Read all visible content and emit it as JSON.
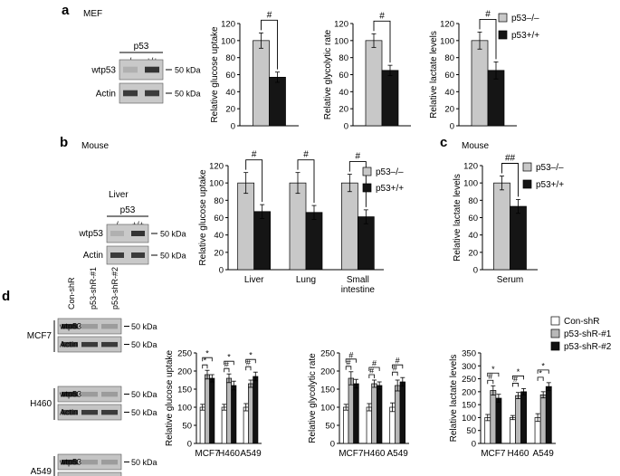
{
  "panels": {
    "a": {
      "letter": "a",
      "subtitle": "MEF"
    },
    "b": {
      "letter": "b",
      "subtitle": "Mouse"
    },
    "c": {
      "letter": "c",
      "subtitle": "Mouse"
    },
    "d": {
      "letter": "d"
    }
  },
  "blots": {
    "a": {
      "group_label": "p53",
      "lanes": [
        "–/–",
        "+/+"
      ],
      "rows": [
        {
          "label": "wtp53",
          "marker": "50 kDa"
        },
        {
          "label": "Actin",
          "marker": "50 kDa"
        }
      ]
    },
    "b": {
      "tissue": "Liver",
      "group_label": "p53",
      "lanes": [
        "–/–",
        "+/+"
      ],
      "rows": [
        {
          "label": "wtp53",
          "marker": "50 kDa"
        },
        {
          "label": "Actin",
          "marker": "50 kDa"
        }
      ]
    },
    "d": {
      "lanes": [
        "Con-shR",
        "p53-shR-#1",
        "p53-shR-#2"
      ],
      "cells": [
        "MCF7",
        "H460",
        "A549"
      ],
      "rows": [
        {
          "label": "wtp53",
          "marker": "50 kDa"
        },
        {
          "label": "Actin",
          "marker": "50 kDa"
        }
      ]
    }
  },
  "legends": {
    "ac": {
      "items": [
        {
          "label": "p53–/–",
          "color": "#c8c8c8"
        },
        {
          "label": "p53+/+",
          "color": "#151515"
        }
      ]
    },
    "d": {
      "items": [
        {
          "label": "Con-shR",
          "color": "#ffffff"
        },
        {
          "label": "p53-shR-#1",
          "color": "#b8b8b8"
        },
        {
          "label": "p53-shR-#2",
          "color": "#111111"
        }
      ]
    }
  },
  "chart_data": [
    {
      "id": "a1",
      "type": "bar",
      "ylabel": "Relative glucose uptake",
      "ylim": [
        0,
        120
      ],
      "yticks": [
        0,
        20,
        40,
        60,
        80,
        100,
        120
      ],
      "categories": [
        ""
      ],
      "series": [
        {
          "values": [
            100
          ],
          "errors": [
            9
          ]
        },
        {
          "values": [
            57
          ],
          "errors": [
            6
          ]
        }
      ],
      "annotations": [
        "#"
      ]
    },
    {
      "id": "a2",
      "type": "bar",
      "ylabel": "Relative glycolytic rate",
      "ylim": [
        0,
        120
      ],
      "yticks": [
        0,
        20,
        40,
        60,
        80,
        100,
        120
      ],
      "categories": [
        ""
      ],
      "series": [
        {
          "values": [
            100
          ],
          "errors": [
            8
          ]
        },
        {
          "values": [
            65
          ],
          "errors": [
            6
          ]
        }
      ],
      "annotations": [
        "#"
      ]
    },
    {
      "id": "a3",
      "type": "bar",
      "ylabel": "Relative lactate levels",
      "ylim": [
        0,
        120
      ],
      "yticks": [
        0,
        20,
        40,
        60,
        80,
        100,
        120
      ],
      "categories": [
        ""
      ],
      "series": [
        {
          "values": [
            100
          ],
          "errors": [
            10
          ]
        },
        {
          "values": [
            65
          ],
          "errors": [
            10
          ]
        }
      ],
      "annotations": [
        "#"
      ]
    },
    {
      "id": "b",
      "type": "bar",
      "ylabel": "Relative glucose uptake",
      "ylim": [
        0,
        120
      ],
      "yticks": [
        0,
        20,
        40,
        60,
        80,
        100,
        120
      ],
      "categories": [
        "Liver",
        "Lung",
        "Small\nintestine"
      ],
      "series": [
        {
          "values": [
            100,
            100,
            100
          ],
          "errors": [
            12,
            12,
            10
          ]
        },
        {
          "values": [
            67,
            66,
            61
          ],
          "errors": [
            8,
            8,
            8
          ]
        }
      ],
      "annotations": [
        "#",
        "#",
        "#"
      ]
    },
    {
      "id": "c",
      "type": "bar",
      "ylabel": "Relative lactate levels",
      "ylim": [
        0,
        120
      ],
      "yticks": [
        0,
        20,
        40,
        60,
        80,
        100,
        120
      ],
      "categories": [
        "Serum"
      ],
      "series": [
        {
          "values": [
            100
          ],
          "errors": [
            8
          ]
        },
        {
          "values": [
            73
          ],
          "errors": [
            8
          ]
        }
      ],
      "annotations": [
        "##"
      ]
    },
    {
      "id": "d1",
      "type": "bar",
      "ylabel": "Relative glucose uptake",
      "ylim": [
        0,
        250
      ],
      "yticks": [
        0,
        50,
        100,
        150,
        200,
        250
      ],
      "categories": [
        "MCF7",
        "H460",
        "A549"
      ],
      "series": [
        {
          "values": [
            100,
            100,
            100
          ],
          "errors": [
            8,
            8,
            10
          ]
        },
        {
          "values": [
            190,
            180,
            165
          ],
          "errors": [
            12,
            12,
            10
          ]
        },
        {
          "values": [
            180,
            160,
            185
          ],
          "errors": [
            10,
            12,
            12
          ]
        }
      ],
      "annotations": [
        [
          "*",
          "*"
        ],
        [
          "#",
          "*"
        ],
        [
          "#",
          "*"
        ]
      ]
    },
    {
      "id": "d2",
      "type": "bar",
      "ylabel": "Relative glycolytic rate",
      "ylim": [
        0,
        250
      ],
      "yticks": [
        0,
        50,
        100,
        150,
        200,
        250
      ],
      "categories": [
        "MCF7",
        "H460",
        "A549"
      ],
      "series": [
        {
          "values": [
            100,
            100,
            100
          ],
          "errors": [
            8,
            10,
            12
          ]
        },
        {
          "values": [
            180,
            165,
            160
          ],
          "errors": [
            18,
            10,
            15
          ]
        },
        {
          "values": [
            165,
            160,
            170
          ],
          "errors": [
            12,
            10,
            12
          ]
        }
      ],
      "annotations": [
        [
          "#",
          "#"
        ],
        [
          "#",
          "#"
        ],
        [
          "#",
          "#"
        ]
      ]
    },
    {
      "id": "d3",
      "type": "bar",
      "ylabel": "Relative lactate levels",
      "ylim": [
        0,
        350
      ],
      "yticks": [
        0,
        50,
        100,
        150,
        200,
        250,
        300,
        350
      ],
      "categories": [
        "MCF7",
        "H460",
        "A549"
      ],
      "series": [
        {
          "values": [
            100,
            100,
            100
          ],
          "errors": [
            12,
            8,
            15
          ]
        },
        {
          "values": [
            205,
            185,
            188
          ],
          "errors": [
            18,
            12,
            12
          ]
        },
        {
          "values": [
            175,
            200,
            220
          ],
          "errors": [
            15,
            12,
            15
          ]
        }
      ],
      "annotations": [
        [
          "#",
          "*"
        ],
        [
          "#",
          "*"
        ],
        [
          "*",
          "*"
        ]
      ]
    }
  ]
}
